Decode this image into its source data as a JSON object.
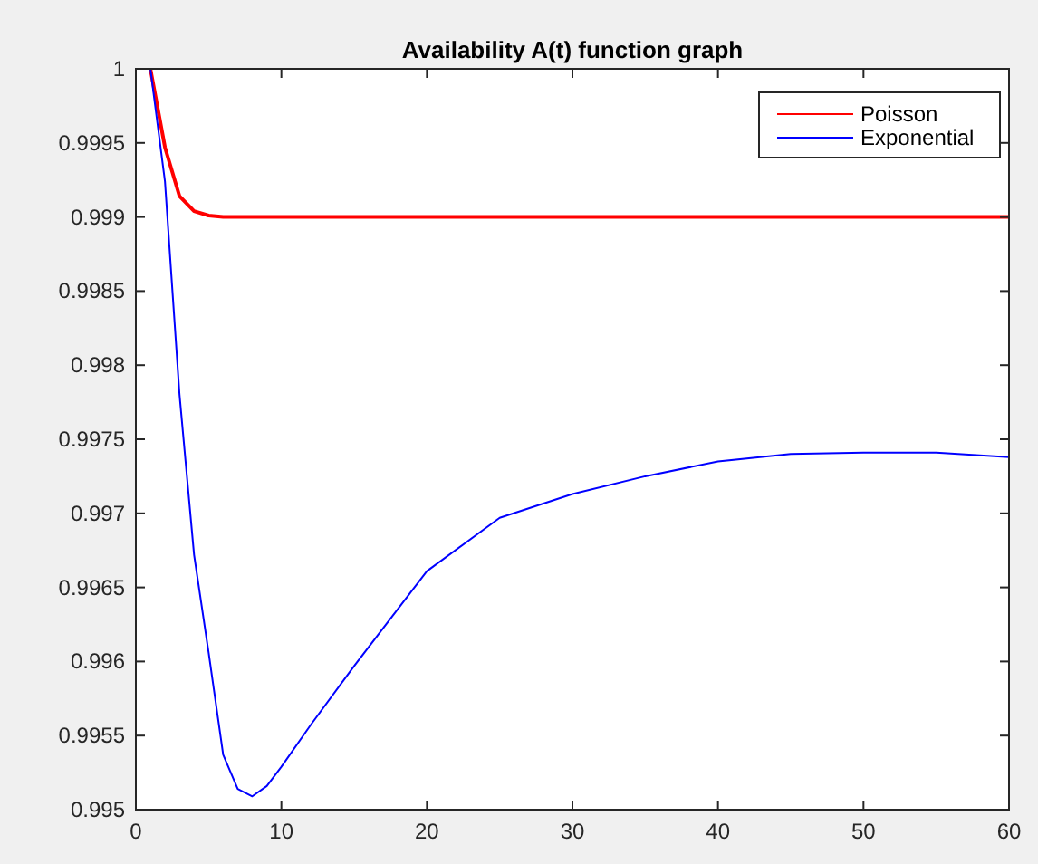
{
  "chart_data": {
    "type": "line",
    "title": "Availability A(t) function graph",
    "xlim": [
      0,
      60
    ],
    "xticks": [
      0,
      10,
      20,
      30,
      40,
      50,
      60
    ],
    "ylim": [
      0.995,
      1
    ],
    "yticks": [
      0.995,
      0.9955,
      0.996,
      0.9965,
      0.997,
      0.9975,
      0.998,
      0.9985,
      0.999,
      0.9995,
      1
    ],
    "grid": false,
    "legend": "top right",
    "line_style": "solid",
    "marker": "none",
    "series": [
      {
        "name": "Poisson",
        "color": "#ff0000",
        "x": [
          1,
          2,
          3,
          4,
          5,
          6,
          10,
          20,
          30,
          40,
          50,
          60
        ],
        "values": [
          1,
          0.99947,
          0.99914,
          0.99904,
          0.99901,
          0.999,
          0.999,
          0.999,
          0.999,
          0.999,
          0.999,
          0.999
        ]
      },
      {
        "name": "Exponential",
        "color": "#0000ff",
        "x": [
          1,
          2,
          3,
          4,
          5,
          6,
          7,
          8,
          9,
          10,
          12,
          15,
          20,
          25,
          30,
          35,
          40,
          45,
          50,
          55,
          60
        ],
        "values": [
          1,
          0.99924,
          0.9978,
          0.99672,
          0.99606,
          0.99537,
          0.99514,
          0.99509,
          0.99516,
          0.99529,
          0.99557,
          0.99597,
          0.99661,
          0.99697,
          0.99713,
          0.99725,
          0.99735,
          0.9974,
          0.99741,
          0.99741,
          0.99738
        ]
      }
    ]
  }
}
